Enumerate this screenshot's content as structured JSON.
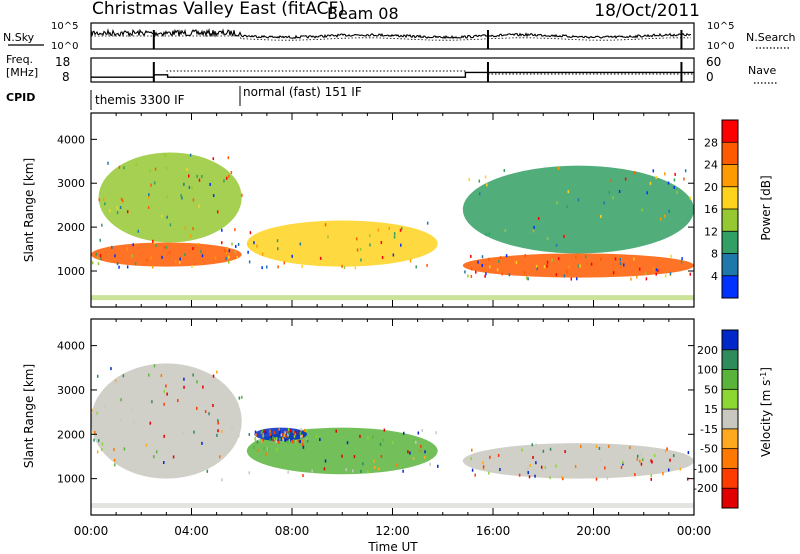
{
  "header": {
    "title": "Christmas Valley East (fitACF)",
    "beam": "Beam 08",
    "date": "18/Oct/2011"
  },
  "side_labels": {
    "nsky": "N.Sky",
    "nsearch": "N.Search",
    "freq": "Freq.",
    "freq_unit": "[MHz]",
    "nave": "Nave",
    "cpid": "CPID"
  },
  "cpid_segments": [
    {
      "label": "themis 3300 IF",
      "start": "00:00",
      "end": "06:00"
    },
    {
      "label": "normal (fast) 151 IF",
      "start": "06:00",
      "end": "24:00"
    }
  ],
  "chart_data": [
    {
      "type": "line",
      "name": "noise-panel",
      "series": [
        {
          "name": "N.Sky"
        },
        {
          "name": "N.Search"
        }
      ],
      "y_tick_labels_left": [
        "10^5",
        "10^0"
      ],
      "y_tick_labels_right": [
        "10^5",
        "10^0"
      ]
    },
    {
      "type": "line",
      "name": "frequency-nave-panel",
      "series": [
        {
          "name": "Freq.",
          "x": [
            0,
            2.5,
            2.5,
            3.05,
            3.05,
            14.9,
            14.9,
            24
          ],
          "values": [
            10,
            10,
            11,
            11,
            10,
            10,
            12,
            12
          ]
        },
        {
          "name": "Nave"
        }
      ],
      "y_tick_labels_left": [
        "18",
        "8"
      ],
      "y_tick_labels_right": [
        "60",
        "0"
      ],
      "ylim_left": [
        8,
        18
      ],
      "ylim_right": [
        0,
        60
      ]
    },
    {
      "type": "heatmap",
      "name": "power-panel",
      "ylabel": "Slant Range [km]",
      "ylim": [
        180,
        4600
      ],
      "y_ticks": [
        1000,
        2000,
        3000,
        4000
      ],
      "colorbar": {
        "label": "Power [dB]",
        "tick_labels": [
          "28",
          "24",
          "20",
          "16",
          "12",
          "8",
          "4"
        ],
        "colors": [
          "#ff0000",
          "#ff5a00",
          "#ff9a00",
          "#ffd21e",
          "#96c832",
          "#32a064",
          "#1e78aa",
          "#0032ff"
        ]
      },
      "regions": [
        {
          "x": [
            0,
            6
          ],
          "y": [
            1100,
            1650
          ],
          "value": 26
        },
        {
          "x": [
            0.3,
            6
          ],
          "y": [
            1650,
            3700
          ],
          "value": 12
        },
        {
          "x": [
            6.2,
            13.8
          ],
          "y": [
            1100,
            2150
          ],
          "value": 18
        },
        {
          "x": [
            14.8,
            24
          ],
          "y": [
            850,
            1400
          ],
          "value": 26
        },
        {
          "x": [
            14.8,
            24
          ],
          "y": [
            1400,
            3400
          ],
          "value": 10
        }
      ]
    },
    {
      "type": "heatmap",
      "name": "velocity-panel",
      "ylabel": "Slant Range [km]",
      "xlabel": "Time UT",
      "ylim": [
        180,
        4600
      ],
      "y_ticks": [
        1000,
        2000,
        3000,
        4000
      ],
      "x_ticks": [
        "00:00",
        "04:00",
        "08:00",
        "12:00",
        "16:00",
        "20:00",
        "00:00"
      ],
      "colorbar": {
        "label": "Velocity [m s^-1]",
        "tick_labels": [
          "200",
          "100",
          "50",
          "15",
          "-15",
          "-50",
          "-100",
          "-200"
        ],
        "colors": [
          "#0028c8",
          "#2d8c5a",
          "#5ab43c",
          "#8cd732",
          "#c8c8c0",
          "#ffaa1e",
          "#ff7800",
          "#ff3c00",
          "#e10000"
        ]
      },
      "regions": [
        {
          "x": [
            0,
            6
          ],
          "y": [
            1000,
            3600
          ],
          "value": 0
        },
        {
          "x": [
            6.2,
            13.8
          ],
          "y": [
            1100,
            2150
          ],
          "value": 60
        },
        {
          "x": [
            6.5,
            8.6
          ],
          "y": [
            1850,
            2150
          ],
          "value": 200
        },
        {
          "x": [
            14.8,
            24
          ],
          "y": [
            1000,
            1800
          ],
          "value": 0
        }
      ]
    }
  ]
}
